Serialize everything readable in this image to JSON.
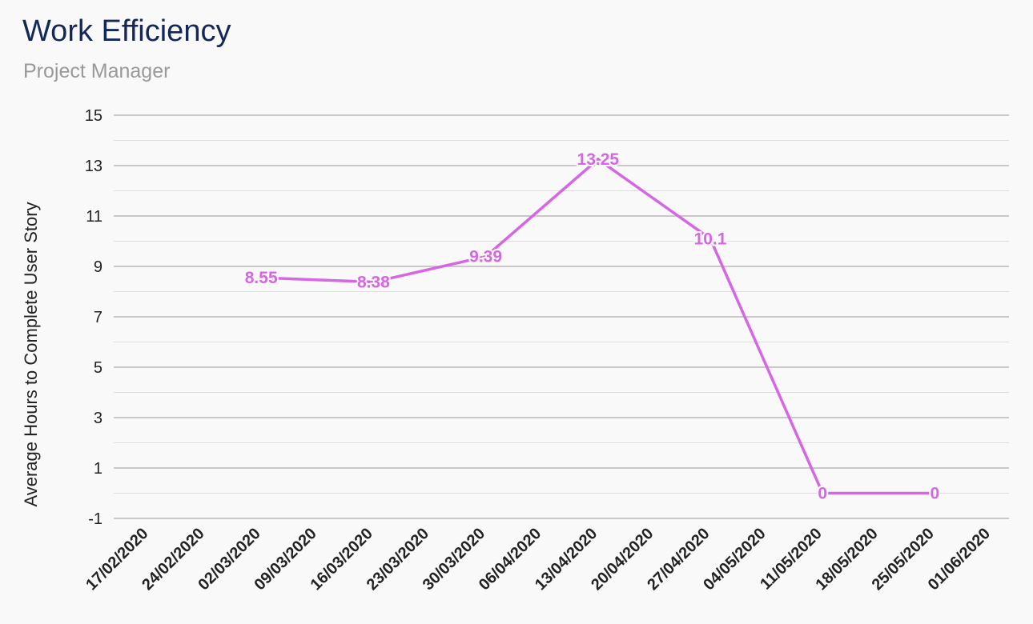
{
  "title": "Work Efficiency",
  "subtitle": "Project Manager",
  "chart_data": {
    "type": "line",
    "title": "Work Efficiency",
    "subtitle": "Project Manager",
    "xlabel": "",
    "ylabel": "Average Hours to Complete User Story",
    "ylim": [
      -1,
      15
    ],
    "yticks": [
      15,
      13,
      11,
      9,
      7,
      5,
      3,
      1,
      -1
    ],
    "grid": true,
    "legend": "none",
    "line_color": "#d666e3",
    "categories": [
      "17/02/2020",
      "24/02/2020",
      "02/03/2020",
      "09/03/2020",
      "16/03/2020",
      "23/03/2020",
      "30/03/2020",
      "06/04/2020",
      "13/04/2020",
      "20/04/2020",
      "27/04/2020",
      "04/05/2020",
      "11/05/2020",
      "18/05/2020",
      "25/05/2020",
      "01/06/2020"
    ],
    "series": [
      {
        "values": [
          null,
          null,
          8.55,
          null,
          8.38,
          null,
          9.39,
          null,
          13.25,
          null,
          10.1,
          null,
          0,
          null,
          0,
          null
        ],
        "labels": [
          null,
          null,
          "8.55",
          null,
          "8.38",
          null,
          "9.39",
          null,
          "13.25",
          null,
          "10.1",
          null,
          "0",
          null,
          "0",
          null
        ]
      }
    ]
  }
}
